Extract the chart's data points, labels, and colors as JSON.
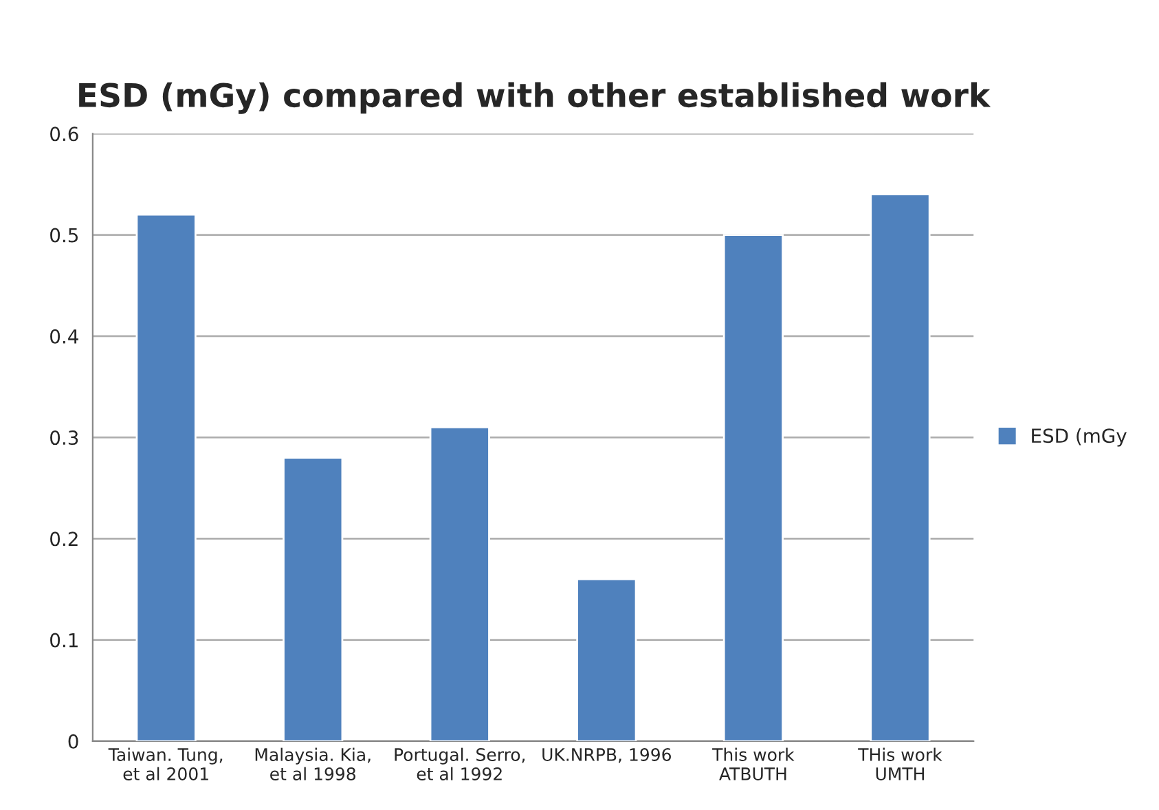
{
  "chart_data": {
    "type": "bar",
    "title": "ESD (mGy) compared with other established work",
    "categories": [
      "Taiwan. Tung,\net al 2001",
      "Malaysia. Kia,\net al 1998",
      "Portugal. Serro,\net al 1992",
      "UK.NRPB, 1996",
      "This work\nATBUTH",
      "THis work\nUMTH"
    ],
    "series": [
      {
        "name": "ESD (mGy",
        "color": "#4f81bd",
        "values": [
          0.52,
          0.28,
          0.31,
          0.16,
          0.5,
          0.54
        ]
      }
    ],
    "ylim": [
      0,
      0.6
    ],
    "yticks": [
      {
        "value": 0,
        "label": "0"
      },
      0.1,
      0.2,
      0.3,
      0.4,
      0.5,
      0.6
    ],
    "grid": "y",
    "legend": "right"
  }
}
